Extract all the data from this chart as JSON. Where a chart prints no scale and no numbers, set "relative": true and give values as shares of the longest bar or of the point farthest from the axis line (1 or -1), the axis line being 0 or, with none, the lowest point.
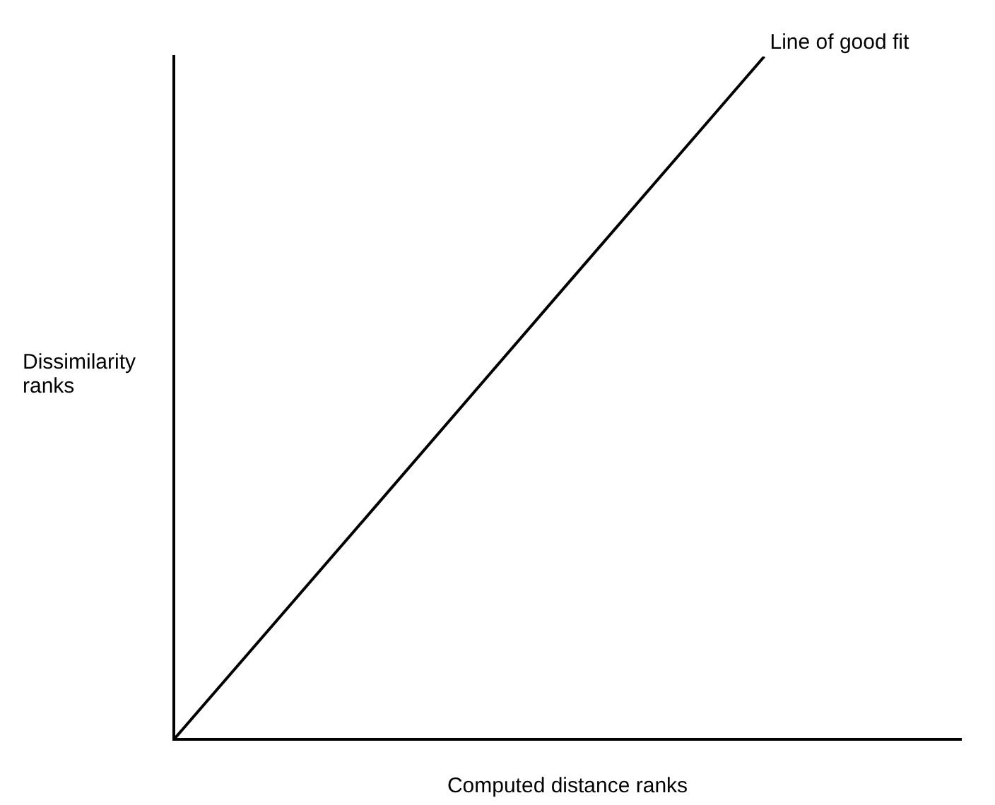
{
  "chart_data": {
    "type": "line",
    "relative": true,
    "xlabel": "Computed distance ranks",
    "ylabel": "Dissimilarity ranks",
    "categories": [
      null,
      null,
      null,
      null,
      null
    ],
    "series": [
      {
        "color": "#000000",
        "values": [
          0,
          0.333,
          0.667,
          1,
          null
        ]
      }
    ],
    "annotations": [
      "Line of good fit"
    ],
    "grid": false,
    "legend": false,
    "marker": "none",
    "line_style": "solid"
  }
}
